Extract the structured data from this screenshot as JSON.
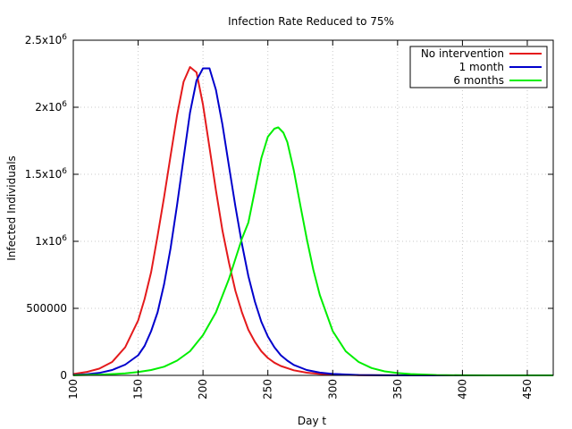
{
  "chart_data": {
    "type": "line",
    "title": "Infection Rate Reduced to 75%",
    "xlabel": "Day t",
    "ylabel": "Infected Individuals",
    "xlim": [
      100,
      470
    ],
    "ylim": [
      0,
      2500000
    ],
    "grid": true,
    "legend_position": "top-right",
    "xticks": [
      {
        "value": 100,
        "label": "100"
      },
      {
        "value": 150,
        "label": "150"
      },
      {
        "value": 200,
        "label": "200"
      },
      {
        "value": 250,
        "label": "250"
      },
      {
        "value": 300,
        "label": "300"
      },
      {
        "value": 350,
        "label": "350"
      },
      {
        "value": 400,
        "label": "400"
      },
      {
        "value": 450,
        "label": "450"
      }
    ],
    "yticks": [
      {
        "value": 0,
        "base": "0",
        "exp": ""
      },
      {
        "value": 500000,
        "base": "500000",
        "exp": ""
      },
      {
        "value": 1000000,
        "base": "1x10",
        "exp": "6"
      },
      {
        "value": 1500000,
        "base": "1.5x10",
        "exp": "6"
      },
      {
        "value": 2000000,
        "base": "2x10",
        "exp": "6"
      },
      {
        "value": 2500000,
        "base": "2.5x10",
        "exp": "6"
      }
    ],
    "series": [
      {
        "name": "No intervention",
        "color": "#e41a1c",
        "x": [
          100,
          110,
          120,
          130,
          140,
          150,
          155,
          160,
          165,
          170,
          175,
          180,
          185,
          190,
          195,
          200,
          205,
          210,
          215,
          220,
          225,
          230,
          235,
          240,
          245,
          250,
          255,
          260,
          270,
          280,
          290,
          300,
          320,
          340,
          360,
          380,
          400,
          470
        ],
        "y": [
          10000,
          25000,
          50000,
          100000,
          210000,
          410000,
          570000,
          770000,
          1040000,
          1330000,
          1640000,
          1940000,
          2190000,
          2300000,
          2260000,
          2020000,
          1700000,
          1380000,
          1080000,
          840000,
          630000,
          470000,
          340000,
          250000,
          180000,
          130000,
          95000,
          70000,
          38000,
          20000,
          11000,
          6000,
          2000,
          700,
          300,
          100,
          50,
          10
        ]
      },
      {
        "name": "1 month",
        "color": "#0000cc",
        "x": [
          100,
          110,
          120,
          130,
          140,
          150,
          155,
          160,
          165,
          170,
          175,
          180,
          185,
          190,
          195,
          200,
          205,
          210,
          215,
          220,
          225,
          230,
          235,
          240,
          245,
          250,
          255,
          260,
          265,
          270,
          280,
          290,
          300,
          320,
          340,
          360,
          380,
          400,
          470
        ],
        "y": [
          3000,
          8000,
          18000,
          40000,
          80000,
          150000,
          220000,
          330000,
          470000,
          680000,
          950000,
          1270000,
          1620000,
          1960000,
          2200000,
          2290000,
          2290000,
          2130000,
          1870000,
          1560000,
          1260000,
          980000,
          740000,
          550000,
          400000,
          290000,
          210000,
          150000,
          110000,
          78000,
          40000,
          21000,
          11000,
          3000,
          900,
          300,
          100,
          40,
          10
        ]
      },
      {
        "name": "6 months",
        "color": "#00ee00",
        "x": [
          100,
          120,
          140,
          150,
          160,
          170,
          180,
          190,
          200,
          210,
          220,
          230,
          235,
          240,
          245,
          250,
          255,
          258,
          262,
          265,
          270,
          275,
          280,
          285,
          290,
          300,
          310,
          320,
          330,
          340,
          350,
          360,
          380,
          400,
          420,
          470
        ],
        "y": [
          1000,
          5000,
          15000,
          25000,
          40000,
          65000,
          110000,
          180000,
          300000,
          470000,
          720000,
          1020000,
          1140000,
          1380000,
          1620000,
          1780000,
          1840000,
          1850000,
          1810000,
          1740000,
          1530000,
          1270000,
          1020000,
          790000,
          600000,
          330000,
          180000,
          100000,
          55000,
          30000,
          17000,
          10000,
          3000,
          1000,
          300,
          30
        ]
      }
    ]
  }
}
